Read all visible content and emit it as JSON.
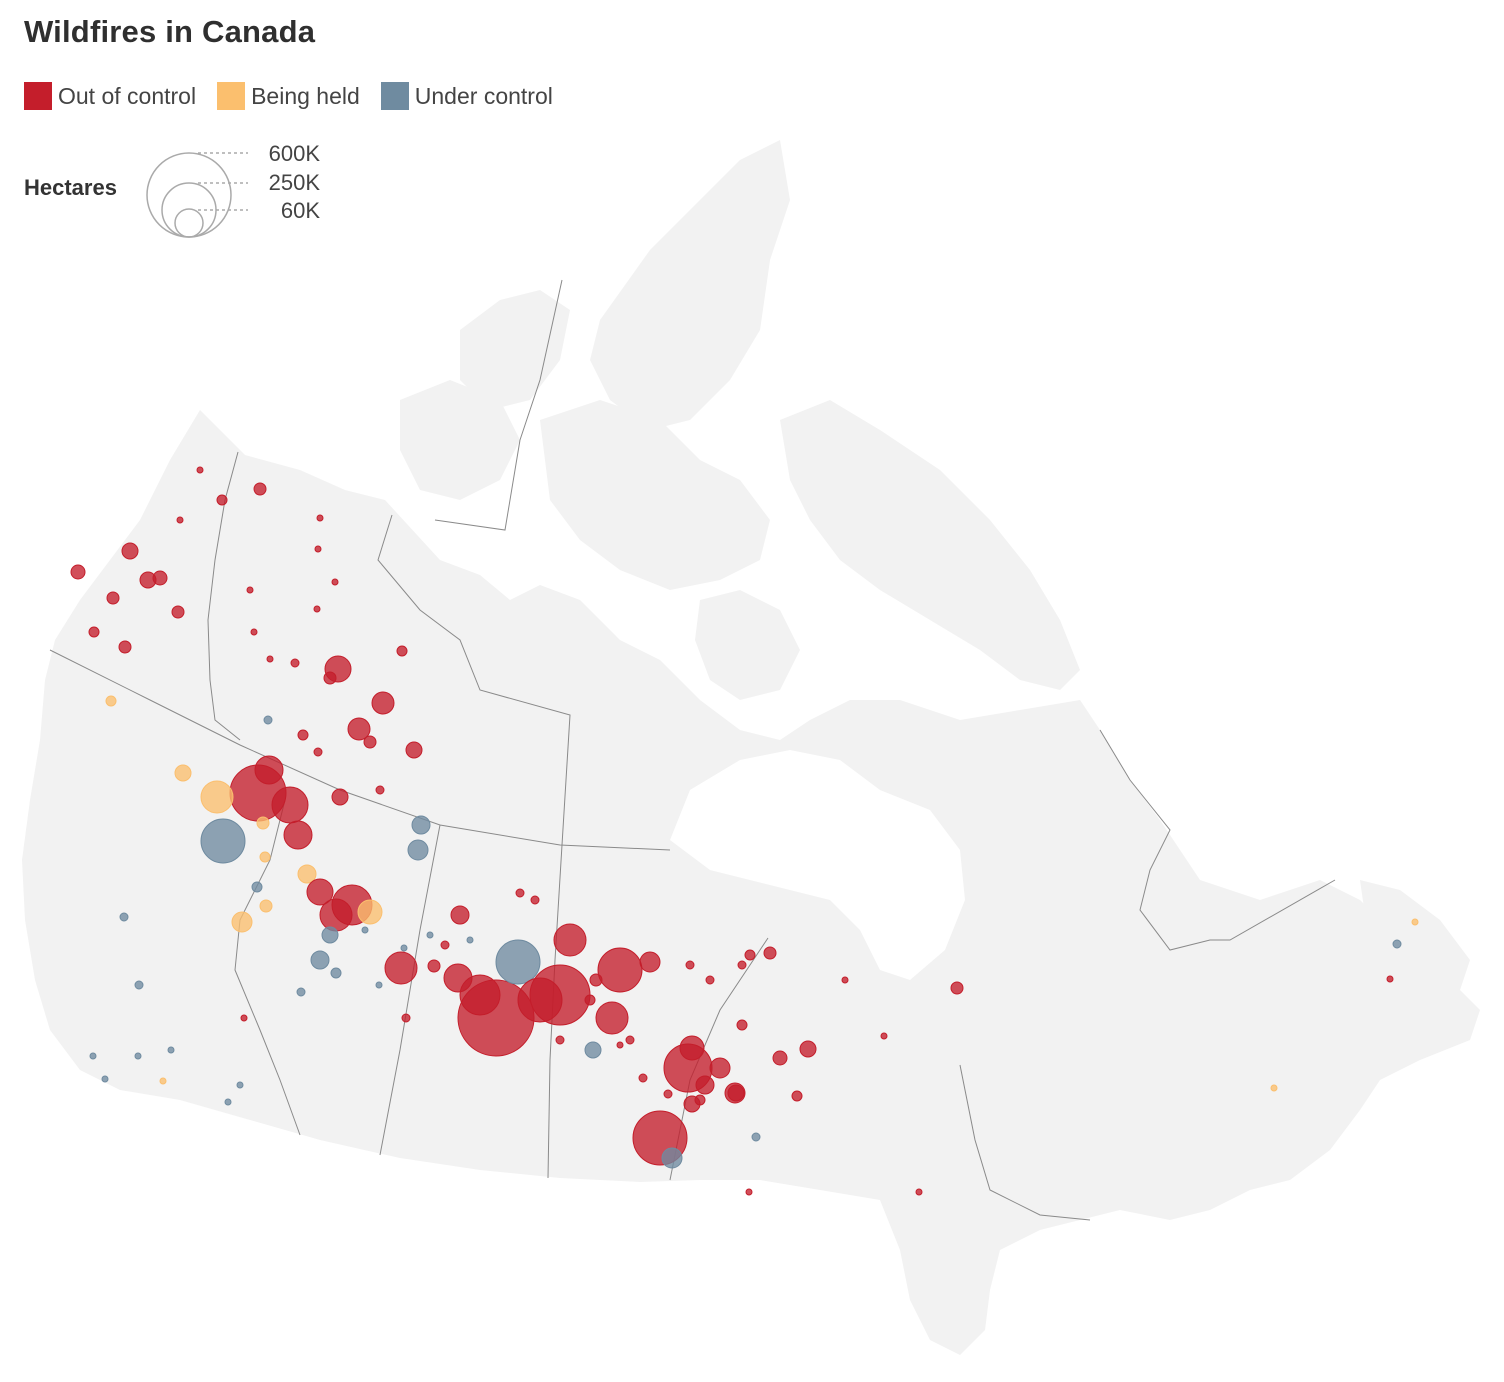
{
  "title": "Wildfires in Canada",
  "legend": {
    "items": [
      {
        "label": "Out of control",
        "color": "#c41e2b"
      },
      {
        "label": "Being held",
        "color": "#fbbf6e"
      },
      {
        "label": "Under control",
        "color": "#6f8ba0"
      }
    ]
  },
  "size_legend": {
    "label": "Hectares",
    "values": [
      {
        "label": "600K",
        "hectares": 600000
      },
      {
        "label": "250K",
        "hectares": 250000
      },
      {
        "label": "60K",
        "hectares": 60000
      }
    ]
  },
  "colors": {
    "land": "#f2f2f2",
    "border": "#8a8a8a",
    "out_of_control": "#c41e2b",
    "being_held": "#fbbf6e",
    "under_control": "#6f8ba0"
  }
}
